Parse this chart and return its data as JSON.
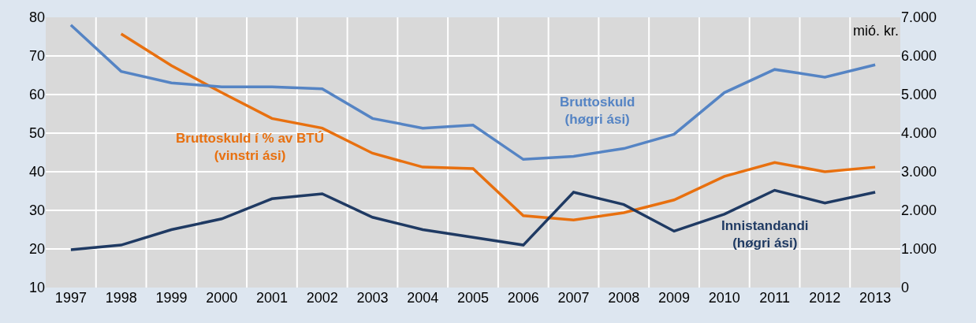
{
  "chart_data": {
    "type": "line",
    "categories": [
      "1997",
      "1998",
      "1999",
      "2000",
      "2001",
      "2002",
      "2003",
      "2004",
      "2005",
      "2006",
      "2007",
      "2008",
      "2009",
      "2010",
      "2011",
      "2012",
      "2013"
    ],
    "series": [
      {
        "name": "Bruttoskuld\n(høgri ási)",
        "color": "#5584c4",
        "axis": "y2",
        "values": [
          6800,
          5600,
          5300,
          5200,
          5200,
          5150,
          4380,
          4130,
          4210,
          3320,
          3400,
          3600,
          3970,
          5050,
          5650,
          5450,
          5770
        ]
      },
      {
        "name": "Bruttoskuld í % av BTÚ\n(vinstri ási)",
        "color": "#e8700f",
        "values": [
          null,
          75.7,
          67.5,
          60.5,
          53.8,
          51.3,
          44.8,
          41.2,
          40.8,
          28.6,
          27.5,
          29.4,
          32.7,
          38.8,
          42.4,
          40.0,
          41.2
        ]
      },
      {
        "name": "Innistandandi\n(høgri ási)",
        "color": "#1f3a63",
        "axis": "y2",
        "values": [
          980,
          1100,
          1500,
          1780,
          2300,
          2430,
          1820,
          1500,
          1300,
          1100,
          2470,
          2150,
          1460,
          1900,
          2520,
          2190,
          2470
        ]
      }
    ],
    "y2label": "mió. kr.",
    "ylim": [
      10,
      80
    ],
    "yticks": [
      10,
      20,
      30,
      40,
      50,
      60,
      70,
      80
    ],
    "y2lim": [
      0,
      7000
    ],
    "y2ticks": [
      {
        "value": 0,
        "label": "0"
      },
      {
        "value": 1000,
        "label": "1.000"
      },
      {
        "value": 2000,
        "label": "2.000"
      },
      {
        "value": 3000,
        "label": "3.000"
      },
      {
        "value": 4000,
        "label": "4.000"
      },
      {
        "value": 5000,
        "label": "5.000"
      },
      {
        "value": 6000,
        "label": "6.000"
      },
      {
        "value": 7000,
        "label": "7.000"
      }
    ],
    "grid": true,
    "legend": false,
    "marker": "none",
    "line_style": "solid"
  }
}
